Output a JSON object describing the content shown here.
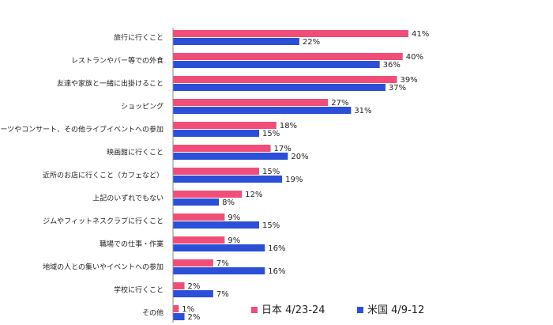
{
  "chart_data": {
    "type": "bar",
    "orientation": "horizontal",
    "categories": [
      "旅行に行くこと",
      "レストランやバー等での外食",
      "友達や家族と一緒に出掛けること",
      "ショッピング",
      "スポーツやコンサート、その他ライブイベントへの参加",
      "映画館に行くこと",
      "近所のお店に行くこと（カフェなど）",
      "上記のいずれでもない",
      "ジムやフィットネスクラブに行くこと",
      "職場での仕事・作業",
      "地域の人との集いやイベントへの参加",
      "学校に行くこと",
      "その他"
    ],
    "series": [
      {
        "name": "日本 4/23-24",
        "color": "#F04E78",
        "values": [
          41,
          40,
          39,
          27,
          18,
          17,
          15,
          12,
          9,
          9,
          7,
          2,
          1
        ],
        "labels": [
          "41%",
          "40%",
          "39%",
          "27%",
          "18%",
          "17%",
          "15%",
          "12%",
          "9%",
          "9%",
          "7%",
          "2%",
          "1%"
        ]
      },
      {
        "name": "米国 4/9-12",
        "color": "#2B4FD6",
        "values": [
          22,
          36,
          37,
          31,
          15,
          20,
          19,
          8,
          15,
          16,
          16,
          7,
          2
        ],
        "labels": [
          "22%",
          "36%",
          "37%",
          "31%",
          "15%",
          "20%",
          "19%",
          "8%",
          "15%",
          "16%",
          "16%",
          "7%",
          "2%"
        ]
      }
    ],
    "xlim": [
      0,
      41
    ],
    "grid": false,
    "legend": "bottom-right"
  }
}
